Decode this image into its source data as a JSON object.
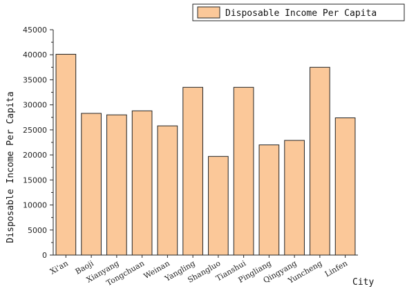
{
  "chart_data": {
    "type": "bar",
    "categories": [
      "Xi'an",
      "Baoji",
      "Xianyang",
      "Tongchuan",
      "Weinan",
      "Yangling",
      "Shangluo",
      "Tianshui",
      "Pingliang",
      "Qingyang",
      "Yuncheng",
      "Linfen"
    ],
    "series": [
      {
        "name": "Disposable Income Per Capita",
        "values": [
          40100,
          28300,
          28000,
          28800,
          25800,
          33500,
          19700,
          33500,
          22000,
          22900,
          37500,
          27400
        ],
        "color": "#fbc899"
      }
    ],
    "title": "",
    "xlabel": "City",
    "ylabel": "Disposable Income Per Capita",
    "ylim": [
      0,
      45000
    ],
    "yticks": [
      0,
      5000,
      10000,
      15000,
      20000,
      25000,
      30000,
      35000,
      40000,
      45000
    ],
    "legend_position": "top-right",
    "grid": false
  }
}
